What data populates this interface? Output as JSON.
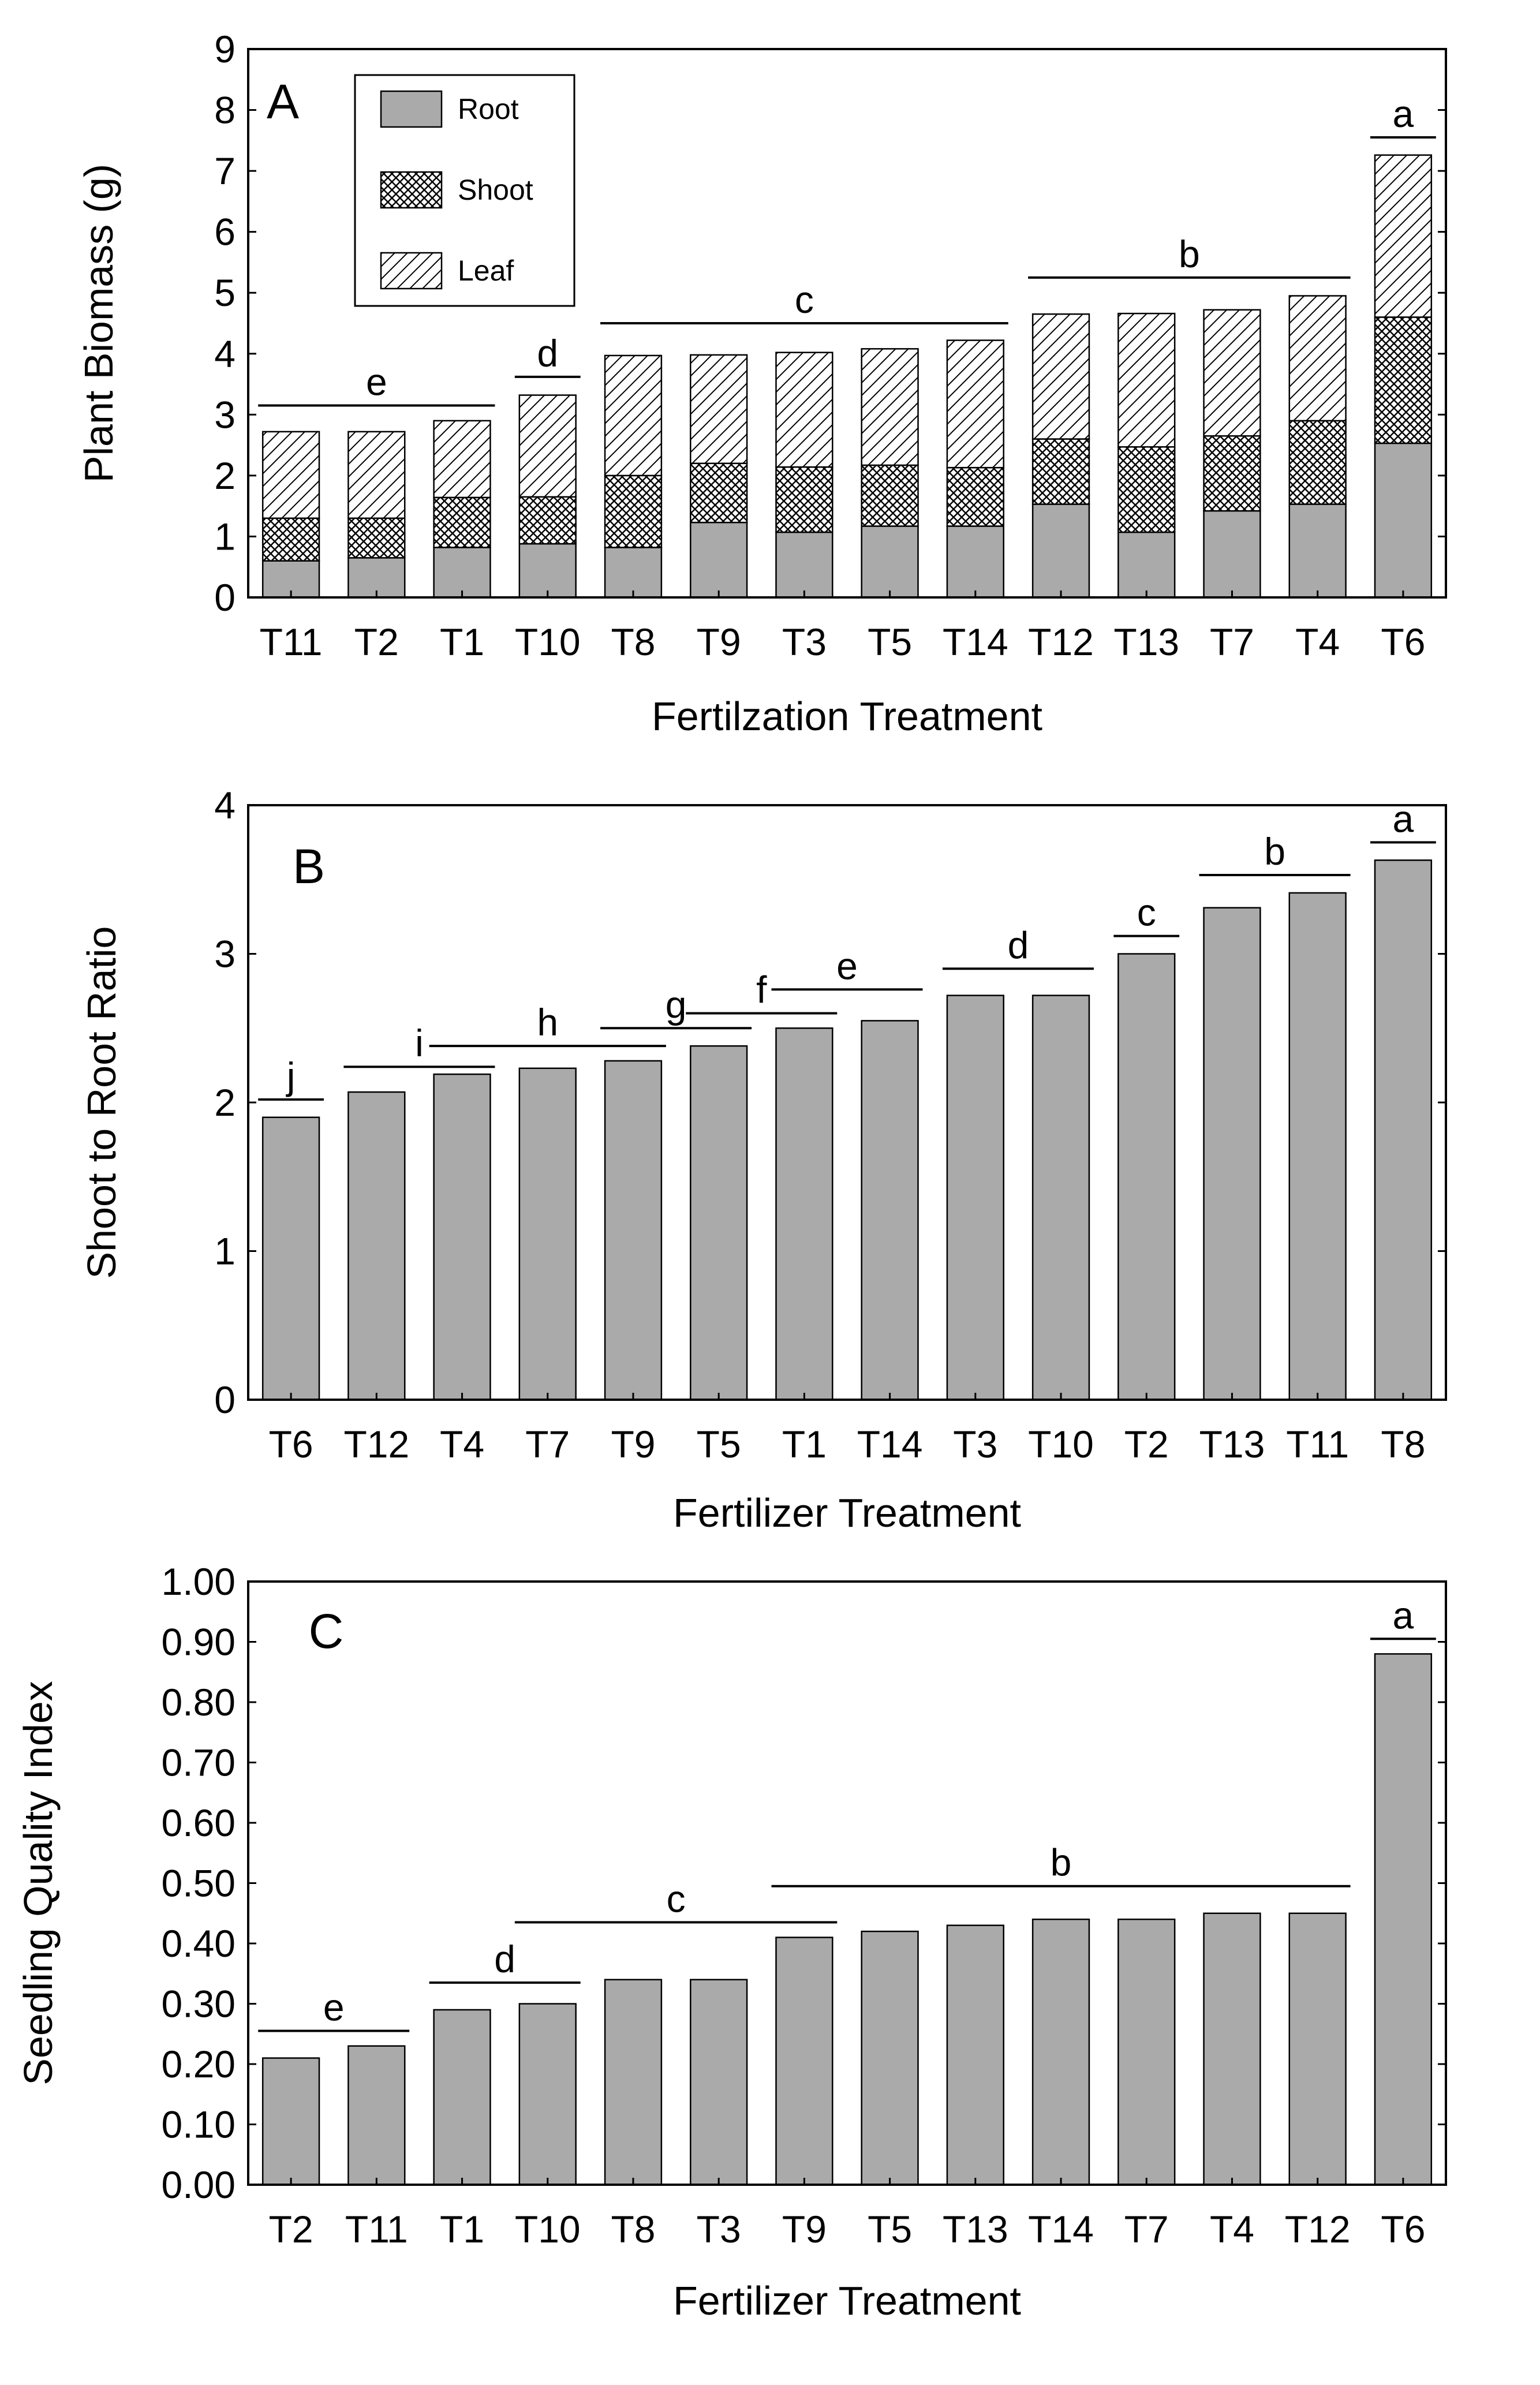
{
  "colors": {
    "bar": "#aaaaaa",
    "stroke": "#000000",
    "background": "#ffffff"
  },
  "chart_data": [
    {
      "type": "bar",
      "stacked": true,
      "panel_letter": "A",
      "title": "",
      "xlabel": "Fertilzation Treatment",
      "ylabel": "Plant Biomass (g)",
      "ylim": [
        0,
        9
      ],
      "yticks": [
        0,
        1,
        2,
        3,
        4,
        5,
        6,
        7,
        8,
        9
      ],
      "ytick_labels": [
        "0",
        "1",
        "2",
        "3",
        "4",
        "5",
        "6",
        "7",
        "8",
        "9"
      ],
      "categories": [
        "T11",
        "T2",
        "T1",
        "T10",
        "T8",
        "T9",
        "T3",
        "T5",
        "T14",
        "T12",
        "T13",
        "T7",
        "T4",
        "T6"
      ],
      "series": [
        {
          "name": "Root",
          "pattern": "solid",
          "values": [
            0.6,
            0.65,
            0.82,
            0.88,
            0.82,
            1.23,
            1.07,
            1.17,
            1.17,
            1.53,
            1.07,
            1.42,
            1.53,
            2.53
          ]
        },
        {
          "name": "Shoot",
          "pattern": "crosshatch",
          "values": [
            0.7,
            0.65,
            0.82,
            0.77,
            1.18,
            0.97,
            1.07,
            1.0,
            0.96,
            1.07,
            1.4,
            1.23,
            1.37,
            2.07
          ]
        },
        {
          "name": "Leaf",
          "pattern": "diagonal",
          "values": [
            1.42,
            1.42,
            1.26,
            1.67,
            1.97,
            1.78,
            1.88,
            1.91,
            2.09,
            2.05,
            2.19,
            2.07,
            2.05,
            2.66
          ]
        }
      ],
      "legend": {
        "position": "top-left",
        "entries": [
          "Root",
          "Shoot",
          "Leaf"
        ]
      },
      "significance": [
        {
          "letter": "e",
          "from": 0,
          "to": 2,
          "y": 3.15
        },
        {
          "letter": "d",
          "from": 3,
          "to": 3,
          "y": 3.62
        },
        {
          "letter": "c",
          "from": 4,
          "to": 8,
          "y": 4.5
        },
        {
          "letter": "b",
          "from": 9,
          "to": 12,
          "y": 5.25
        },
        {
          "letter": "a",
          "from": 13,
          "to": 13,
          "y": 7.55
        }
      ]
    },
    {
      "type": "bar",
      "panel_letter": "B",
      "title": "",
      "xlabel": "Fertilizer Treatment",
      "ylabel": "Shoot to Root Ratio",
      "ylim": [
        0,
        4
      ],
      "yticks": [
        0,
        1,
        2,
        3,
        4
      ],
      "ytick_labels": [
        "0",
        "1",
        "2",
        "3",
        "4"
      ],
      "categories": [
        "T6",
        "T12",
        "T4",
        "T7",
        "T9",
        "T5",
        "T1",
        "T14",
        "T3",
        "T10",
        "T2",
        "T13",
        "T11",
        "T8"
      ],
      "values": [
        1.9,
        2.07,
        2.19,
        2.23,
        2.28,
        2.38,
        2.5,
        2.55,
        2.72,
        2.72,
        3.0,
        3.31,
        3.41,
        3.63
      ],
      "significance": [
        {
          "letter": "j",
          "from": 0,
          "to": 0,
          "y": 2.02
        },
        {
          "letter": "i",
          "from": 1,
          "to": 2,
          "y": 2.24
        },
        {
          "letter": "h",
          "from": 2,
          "to": 4,
          "y": 2.38
        },
        {
          "letter": "g",
          "from": 4,
          "to": 5,
          "y": 2.5
        },
        {
          "letter": "f",
          "from": 5,
          "to": 6,
          "y": 2.6
        },
        {
          "letter": "e",
          "from": 6,
          "to": 7,
          "y": 2.76
        },
        {
          "letter": "d",
          "from": 8,
          "to": 9,
          "y": 2.9
        },
        {
          "letter": "c",
          "from": 10,
          "to": 10,
          "y": 3.12
        },
        {
          "letter": "b",
          "from": 11,
          "to": 12,
          "y": 3.53
        },
        {
          "letter": "a",
          "from": 13,
          "to": 13,
          "y": 3.75
        }
      ]
    },
    {
      "type": "bar",
      "panel_letter": "C",
      "title": "",
      "xlabel": "Fertilizer Treatment",
      "ylabel": "Seedling Quality Index",
      "ylim": [
        0,
        1
      ],
      "yticks": [
        0,
        0.1,
        0.2,
        0.3,
        0.4,
        0.5,
        0.6,
        0.7,
        0.8,
        0.9,
        1.0
      ],
      "ytick_labels": [
        "0.00",
        "0.10",
        "0.20",
        "0.30",
        "0.40",
        "0.50",
        "0.60",
        "0.70",
        "0.80",
        "0.90",
        "1.00"
      ],
      "categories": [
        "T2",
        "T11",
        "T1",
        "T10",
        "T8",
        "T3",
        "T9",
        "T5",
        "T13",
        "T14",
        "T7",
        "T4",
        "T12",
        "T6"
      ],
      "values": [
        0.21,
        0.23,
        0.29,
        0.3,
        0.34,
        0.34,
        0.41,
        0.42,
        0.43,
        0.44,
        0.44,
        0.45,
        0.45,
        0.88
      ],
      "significance": [
        {
          "letter": "e",
          "from": 0,
          "to": 1,
          "y": 0.255
        },
        {
          "letter": "d",
          "from": 2,
          "to": 3,
          "y": 0.335
        },
        {
          "letter": "c",
          "from": 3,
          "to": 6,
          "y": 0.435
        },
        {
          "letter": "b",
          "from": 6,
          "to": 12,
          "y": 0.495
        },
        {
          "letter": "a",
          "from": 13,
          "to": 13,
          "y": 0.905
        }
      ]
    }
  ]
}
